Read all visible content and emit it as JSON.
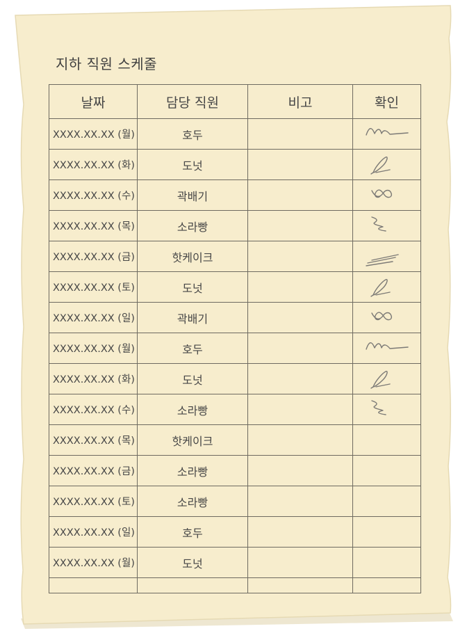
{
  "document": {
    "title": "지하 직원 스케줄",
    "columns": {
      "date": "날짜",
      "staff": "담당 직원",
      "note": "비고",
      "confirm": "확인"
    },
    "rows": [
      {
        "date": "XXXX.XX.XX (월)",
        "staff": "호두",
        "note": "",
        "signature": "signature-wave"
      },
      {
        "date": "XXXX.XX.XX (화)",
        "staff": "도넛",
        "note": "",
        "signature": "signature-loop"
      },
      {
        "date": "XXXX.XX.XX (수)",
        "staff": "곽배기",
        "note": "",
        "signature": "signature-knot"
      },
      {
        "date": "XXXX.XX.XX (목)",
        "staff": "소라빵",
        "note": "",
        "signature": "signature-zigzag"
      },
      {
        "date": "XXXX.XX.XX (금)",
        "staff": "핫케이크",
        "note": "",
        "signature": "signature-lines"
      },
      {
        "date": "XXXX.XX.XX (토)",
        "staff": "도넛",
        "note": "",
        "signature": "signature-loop"
      },
      {
        "date": "XXXX.XX.XX (일)",
        "staff": "곽배기",
        "note": "",
        "signature": "signature-knot"
      },
      {
        "date": "XXXX.XX.XX (월)",
        "staff": "호두",
        "note": "",
        "signature": "signature-wave"
      },
      {
        "date": "XXXX.XX.XX (화)",
        "staff": "도넛",
        "note": "",
        "signature": "signature-loop"
      },
      {
        "date": "XXXX.XX.XX (수)",
        "staff": "소라빵",
        "note": "",
        "signature": "signature-zigzag"
      },
      {
        "date": "XXXX.XX.XX (목)",
        "staff": "핫케이크",
        "note": "",
        "signature": ""
      },
      {
        "date": "XXXX.XX.XX (금)",
        "staff": "소라빵",
        "note": "",
        "signature": ""
      },
      {
        "date": "XXXX.XX.XX (토)",
        "staff": "소라빵",
        "note": "",
        "signature": ""
      },
      {
        "date": "XXXX.XX.XX (일)",
        "staff": "호두",
        "note": "",
        "signature": ""
      },
      {
        "date": "XXXX.XX.XX (월)",
        "staff": "도넛",
        "note": "",
        "signature": ""
      }
    ]
  },
  "colors": {
    "paper": "#f7edcd",
    "paper_edge": "#e3d7b2",
    "grid_line": "#6e6a60",
    "text": "#474747"
  }
}
